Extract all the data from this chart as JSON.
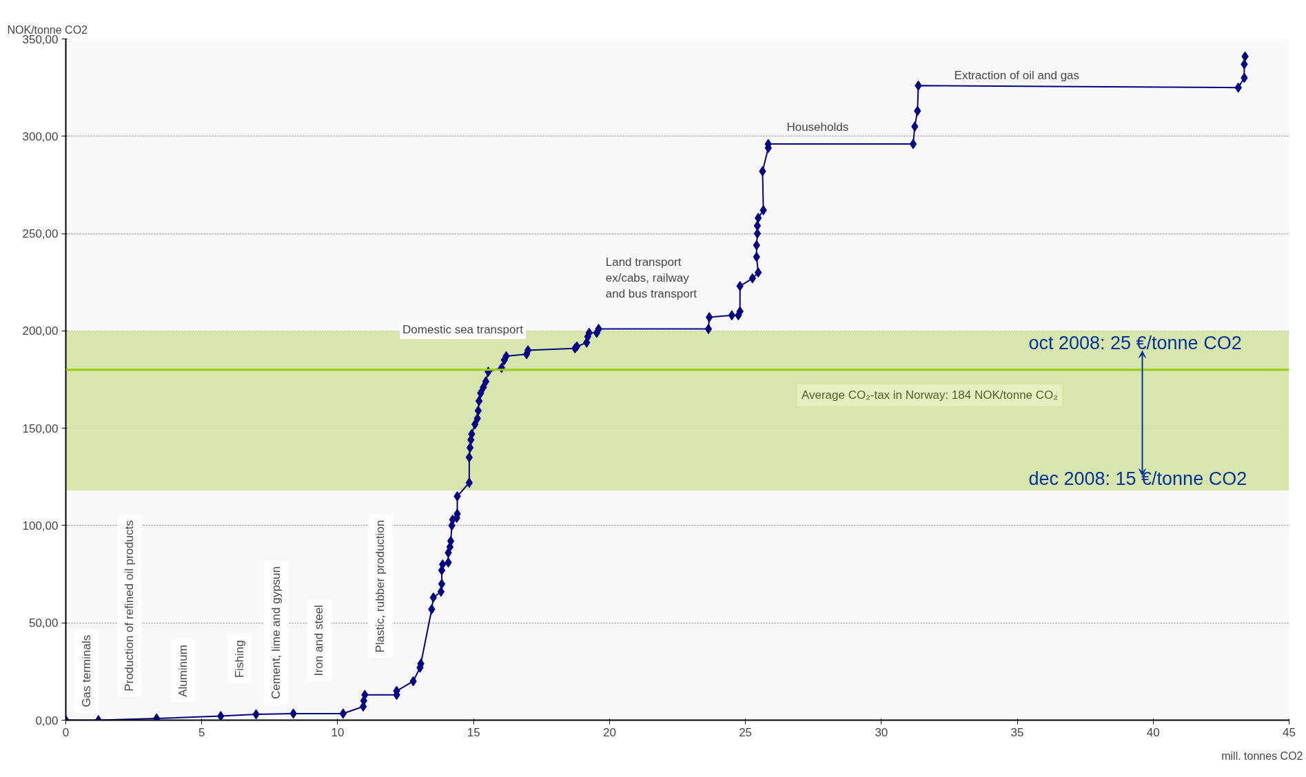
{
  "chart_data": {
    "type": "line",
    "xlabel": "mill. tonnes CO2",
    "ylabel": "NOK/tonne CO2",
    "xlim": [
      0,
      45
    ],
    "ylim": [
      0,
      350
    ],
    "xticks": [
      0,
      5,
      10,
      15,
      20,
      25,
      30,
      35,
      40,
      45
    ],
    "yticks": [
      {
        "value": 0,
        "label": "0,00"
      },
      {
        "value": 50,
        "label": "50,00"
      },
      {
        "value": 100,
        "label": "100,00"
      },
      {
        "value": 150,
        "label": "150,00"
      },
      {
        "value": 200,
        "label": "200,00"
      },
      {
        "value": 250,
        "label": "250,00"
      },
      {
        "value": 300,
        "label": "300,00"
      },
      {
        "value": 350,
        "label": "350,00"
      }
    ],
    "grid": "y",
    "marker": "diamond",
    "line_style": "solid",
    "series": [
      {
        "color": "#000080",
        "x": [
          0,
          1.2,
          3.34,
          5.7,
          7.0,
          8.37,
          10.2,
          10.94,
          10.96,
          11.0,
          12.17,
          12.17,
          12.78,
          13.03,
          13.06,
          13.46,
          13.52,
          13.8,
          13.83,
          13.83,
          13.86,
          14.07,
          14.07,
          14.13,
          14.16,
          14.2,
          14.23,
          14.38,
          14.4,
          14.4,
          14.84,
          14.84,
          14.87,
          14.9,
          14.93,
          15.05,
          15.14,
          15.17,
          15.2,
          15.26,
          15.36,
          15.45,
          15.54,
          16.03,
          16.13,
          16.2,
          16.95,
          17.0,
          18.73,
          18.8,
          19.16,
          19.2,
          19.25,
          19.53,
          19.6,
          23.64,
          23.67,
          24.5,
          24.74,
          24.8,
          24.8,
          25.26,
          25.47,
          25.41,
          25.41,
          25.44,
          25.44,
          25.47,
          25.66,
          25.63,
          25.84,
          25.84,
          31.17,
          31.23,
          31.33,
          31.36,
          43.13,
          43.35,
          43.35,
          43.38
        ],
        "values": [
          0,
          0,
          0.9,
          2.1,
          3.0,
          3.4,
          3.4,
          7,
          10,
          13,
          13,
          15,
          20,
          27,
          29,
          57,
          63,
          66,
          70,
          77,
          80,
          81,
          86,
          89,
          92,
          100,
          103,
          104,
          106,
          115,
          122,
          135,
          140,
          144,
          147,
          152,
          155,
          159,
          164,
          168,
          171,
          174,
          179,
          181,
          185,
          187,
          188,
          190,
          191,
          192,
          194,
          197,
          199,
          199,
          201,
          201,
          207,
          208,
          208,
          210,
          223,
          227,
          230,
          238,
          244,
          250,
          254,
          258,
          262,
          282,
          294,
          296,
          296,
          305,
          313,
          326,
          325,
          330,
          337,
          341
        ]
      }
    ],
    "bands": [
      {
        "axis": "y",
        "from": 118,
        "to": 200,
        "color": "#d4e3a4"
      }
    ],
    "ref_lines": [
      {
        "axis": "y",
        "value": 180,
        "color": "#99cc00"
      }
    ],
    "annotations": [
      "Gas terminals",
      "Production of refined oil products",
      "Aluminum",
      "Fishing",
      "Cement, lime and gypsun",
      "Iron and steel",
      "Plastic, rubber production",
      "Domestic sea transport",
      "Land transport\nex/cabs, railway\nand bus transport",
      "Households",
      "Extraction of oil and gas",
      "oct 2008: 25 €/tonne CO2",
      "dec 2008: 15 €/tonne CO2",
      "Average CO₂-tax in Norway: 184 NOK/tonne CO₂"
    ]
  }
}
